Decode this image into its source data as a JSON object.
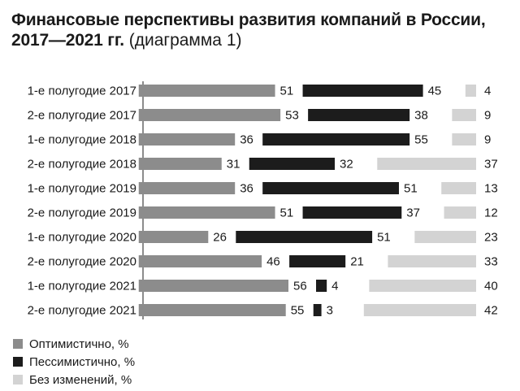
{
  "title": {
    "main_line1": "Финансовые перспективы развития компаний в России,",
    "main_line2": "2017—2021 гг.",
    "note": "(диаграмма 1)"
  },
  "colors": {
    "optimistic": "#8c8c8c",
    "pessimistic": "#1c1c1c",
    "unchanged": "#d3d3d3"
  },
  "legend": [
    {
      "label": "Оптимистично, %",
      "color": "#8c8c8c"
    },
    {
      "label": "Пессимистично, %",
      "color": "#1c1c1c"
    },
    {
      "label": "Без изменений, %",
      "color": "#d3d3d3"
    }
  ],
  "chart_data": {
    "type": "bar",
    "orientation": "horizontal",
    "layout": "three-segment diverging",
    "categories": [
      "1-е полугодие 2017",
      "2-е полугодие 2017",
      "1-е полугодие 2018",
      "2-е полугодие 2018",
      "1-е полугодие 2019",
      "2-е полугодие 2019",
      "1-е полугодие 2020",
      "2-е полугодие 2020",
      "1-е полугодие 2021",
      "2-е полугодие 2021"
    ],
    "series": [
      {
        "name": "Оптимистично, %",
        "values": [
          51,
          53,
          36,
          31,
          36,
          51,
          26,
          46,
          56,
          55
        ]
      },
      {
        "name": "Пессимистично, %",
        "values": [
          45,
          38,
          55,
          32,
          51,
          37,
          51,
          21,
          4,
          3
        ]
      },
      {
        "name": "Без изменений, %",
        "values": [
          4,
          9,
          9,
          37,
          13,
          12,
          23,
          33,
          40,
          42
        ]
      }
    ],
    "legend_position": "bottom-left",
    "grid": false
  }
}
